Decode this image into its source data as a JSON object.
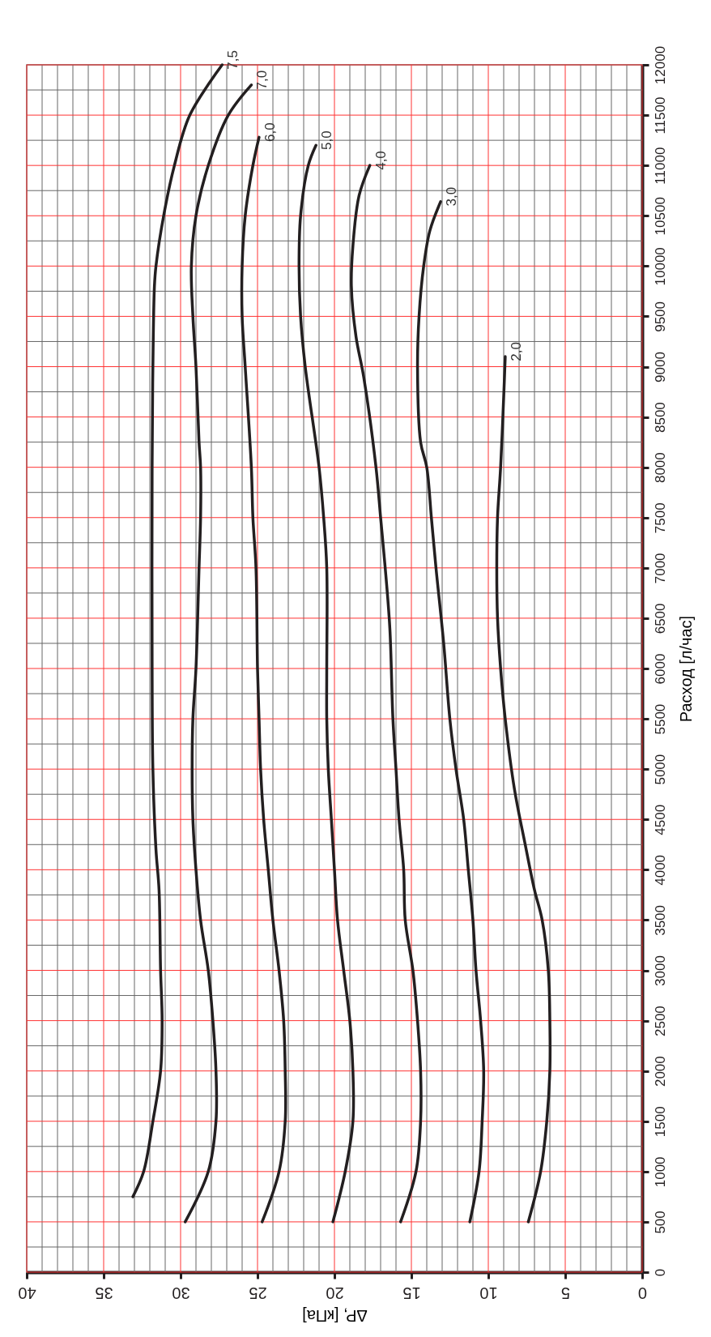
{
  "chart_data": {
    "type": "line",
    "xlabel": "ΔP, [кПа]",
    "ylabel": "Расход [л/час]",
    "xlim": [
      40,
      0
    ],
    "ylim": [
      0,
      12000
    ],
    "xticks": [
      0,
      {
        "value": 1,
        "label": null
      },
      {
        "value": 2,
        "label": null
      },
      {
        "value": 3,
        "label": null
      },
      {
        "value": 4,
        "label": null
      },
      5,
      {
        "value": 6,
        "label": null
      },
      {
        "value": 7,
        "label": null
      },
      {
        "value": 8,
        "label": null
      },
      {
        "value": 9,
        "label": null
      },
      10,
      {
        "value": 11,
        "label": null
      },
      {
        "value": 12,
        "label": null
      },
      {
        "value": 13,
        "label": null
      },
      {
        "value": 14,
        "label": null
      },
      15,
      {
        "value": 16,
        "label": null
      },
      {
        "value": 17,
        "label": null
      },
      {
        "value": 18,
        "label": null
      },
      {
        "value": 19,
        "label": null
      },
      20,
      {
        "value": 21,
        "label": null
      },
      {
        "value": 22,
        "label": null
      },
      {
        "value": 23,
        "label": null
      },
      {
        "value": 24,
        "label": null
      },
      25,
      {
        "value": 26,
        "label": null
      },
      {
        "value": 27,
        "label": null
      },
      {
        "value": 28,
        "label": null
      },
      {
        "value": 29,
        "label": null
      },
      30,
      {
        "value": 31,
        "label": null
      },
      {
        "value": 32,
        "label": null
      },
      {
        "value": 33,
        "label": null
      },
      {
        "value": 34,
        "label": null
      },
      35,
      {
        "value": 36,
        "label": null
      },
      {
        "value": 37,
        "label": null
      },
      {
        "value": 38,
        "label": null
      },
      {
        "value": 39,
        "label": null
      },
      40
    ],
    "yticks": [
      0,
      {
        "value": 250,
        "label": null
      },
      500,
      {
        "value": 750,
        "label": null
      },
      1000,
      {
        "value": 1250,
        "label": null
      },
      1500,
      {
        "value": 1750,
        "label": null
      },
      2000,
      {
        "value": 2250,
        "label": null
      },
      2500,
      {
        "value": 2750,
        "label": null
      },
      3000,
      {
        "value": 3250,
        "label": null
      },
      3500,
      {
        "value": 3750,
        "label": null
      },
      4000,
      {
        "value": 4250,
        "label": null
      },
      4500,
      {
        "value": 4750,
        "label": null
      },
      5000,
      {
        "value": 5250,
        "label": null
      },
      5500,
      {
        "value": 5750,
        "label": null
      },
      6000,
      {
        "value": 6250,
        "label": null
      },
      6500,
      {
        "value": 6750,
        "label": null
      },
      7000,
      {
        "value": 7250,
        "label": null
      },
      7500,
      {
        "value": 7750,
        "label": null
      },
      8000,
      {
        "value": 8250,
        "label": null
      },
      8500,
      {
        "value": 8750,
        "label": null
      },
      9000,
      {
        "value": 9250,
        "label": null
      },
      9500,
      {
        "value": 9750,
        "label": null
      },
      10000,
      {
        "value": 10250,
        "label": null
      },
      10500,
      {
        "value": 10750,
        "label": null
      },
      11000,
      {
        "value": 11250,
        "label": null
      },
      11500,
      {
        "value": 11750,
        "label": null
      },
      12000
    ],
    "grid": true,
    "legend": false,
    "marker": "none",
    "line_style": "solid",
    "series": [
      {
        "name": "7,5",
        "color": "#231f20",
        "x": [
          33.1,
          32.4,
          31.8,
          31.3,
          31.2,
          31.3,
          31.4,
          31.6,
          31.8,
          31.85,
          31.85,
          31.8,
          31.7,
          31.6,
          31.1,
          30.4,
          29.4,
          27.3
        ],
        "values": [
          750,
          1000,
          1500,
          2000,
          2500,
          3000,
          3800,
          4200,
          5000,
          6000,
          8000,
          9000,
          9800,
          10000,
          10500,
          11000,
          11500,
          12000
        ]
      },
      {
        "name": "7,0",
        "color": "#231f20",
        "x": [
          29.7,
          28.2,
          27.7,
          27.7,
          27.9,
          28.2,
          28.7,
          29.0,
          29.2,
          29.25,
          29.2,
          29.0,
          28.8,
          28.7,
          28.7,
          28.8,
          29.0,
          29.2,
          29.3,
          29.0,
          28.2,
          26.9,
          25.4
        ],
        "values": [
          500,
          1000,
          1500,
          2000,
          2500,
          3000,
          3500,
          4000,
          4500,
          5000,
          5500,
          6000,
          7000,
          7500,
          8000,
          8250,
          9000,
          9500,
          10000,
          10500,
          11000,
          11500,
          11800
        ]
      },
      {
        "name": "6,0",
        "color": "#231f20",
        "x": [
          24.7,
          23.6,
          23.2,
          23.2,
          23.3,
          23.6,
          24.0,
          24.3,
          24.6,
          24.8,
          24.9,
          25.0,
          25.1,
          25.3,
          25.4,
          25.8,
          26.0,
          26.0,
          25.8,
          25.3,
          24.9
        ],
        "values": [
          500,
          1000,
          1500,
          2000,
          2500,
          3000,
          3500,
          4000,
          4500,
          5000,
          5500,
          6000,
          7000,
          7500,
          8000,
          9000,
          9500,
          10000,
          10500,
          11000,
          11280
        ]
      },
      {
        "name": "5,0",
        "color": "#231f20",
        "x": [
          20.1,
          19.3,
          18.8,
          18.8,
          19.0,
          19.4,
          19.8,
          20.0,
          20.2,
          20.4,
          20.5,
          20.5,
          20.5,
          20.7,
          21.0,
          21.9,
          22.2,
          22.3,
          22.2,
          21.7,
          21.2
        ],
        "values": [
          500,
          1000,
          1500,
          2000,
          2500,
          3000,
          3500,
          4000,
          4500,
          5000,
          5500,
          6000,
          7000,
          7500,
          8000,
          9000,
          9500,
          10000,
          10500,
          11000,
          11200
        ]
      },
      {
        "name": "4,0",
        "color": "#231f20",
        "x": [
          15.7,
          14.7,
          14.4,
          14.4,
          14.6,
          14.9,
          15.4,
          15.5,
          15.8,
          16.0,
          16.2,
          16.4,
          16.7,
          17.0,
          17.3,
          18.1,
          18.6,
          18.9,
          18.8,
          18.4,
          17.7
        ],
        "values": [
          500,
          1000,
          1500,
          2000,
          2500,
          3000,
          3500,
          4000,
          4500,
          5000,
          5500,
          6400,
          7000,
          7500,
          8000,
          8900,
          9300,
          9800,
          10200,
          10700,
          11000
        ]
      },
      {
        "name": "3,0",
        "color": "#231f20",
        "x": [
          11.2,
          10.6,
          10.4,
          10.3,
          10.5,
          10.8,
          11.0,
          11.3,
          11.6,
          12.1,
          12.5,
          12.9,
          13.4,
          13.7,
          14.0,
          14.4,
          14.6,
          14.5,
          14.2,
          13.8,
          13.1
        ],
        "values": [
          500,
          1000,
          1500,
          2000,
          2500,
          3000,
          3500,
          4000,
          4500,
          5000,
          5500,
          6250,
          7000,
          7500,
          8000,
          8250,
          9000,
          9500,
          10000,
          10350,
          10640
        ]
      },
      {
        "name": "2,0",
        "color": "#231f20",
        "x": [
          7.4,
          6.6,
          6.2,
          6.0,
          6.0,
          6.1,
          6.5,
          7.0,
          7.6,
          8.3,
          8.9,
          9.2,
          9.4,
          9.45,
          9.4,
          9.2,
          9.0,
          8.9
        ],
        "values": [
          500,
          1000,
          1500,
          2000,
          2500,
          3000,
          3500,
          3800,
          4250,
          4800,
          5500,
          6000,
          6500,
          7000,
          7500,
          8000,
          8700,
          9100
        ]
      }
    ]
  }
}
